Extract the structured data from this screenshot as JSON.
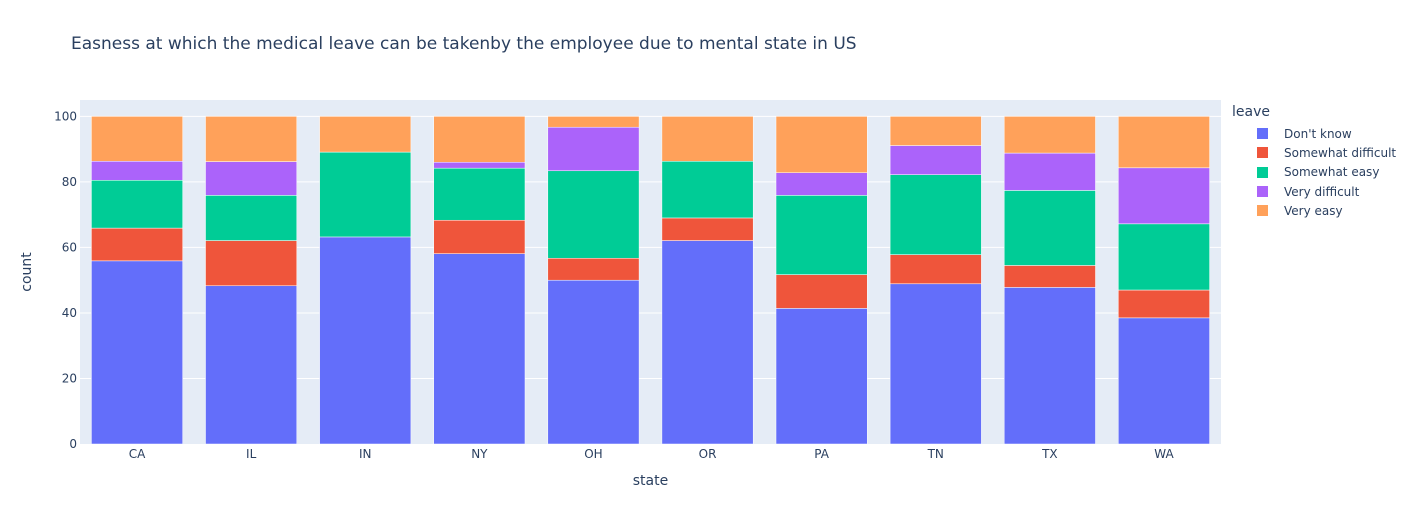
{
  "chart_data": {
    "type": "bar",
    "barmode": "stack",
    "title": "Easness at which the medical leave can be takenby the employee due to mental state in US",
    "xlabel": "state",
    "ylabel": "count",
    "ylim": [
      0,
      100
    ],
    "yticks": [
      0,
      20,
      40,
      60,
      80,
      100
    ],
    "grid": true,
    "legend_title": "leave",
    "legend_position": "right",
    "categories": [
      "CA",
      "IL",
      "IN",
      "NY",
      "OH",
      "OR",
      "PA",
      "TN",
      "TX",
      "WA"
    ],
    "series": [
      {
        "name": "Don't know",
        "color": "#636efa",
        "values": [
          55.9,
          48.3,
          63.2,
          58.1,
          50.0,
          62.1,
          41.4,
          48.9,
          47.8,
          38.5
        ]
      },
      {
        "name": "Somewhat difficult",
        "color": "#ef553b",
        "values": [
          10.0,
          13.8,
          0.0,
          10.2,
          6.7,
          6.9,
          10.3,
          8.9,
          6.7,
          8.5
        ]
      },
      {
        "name": "Somewhat easy",
        "color": "#00cc96",
        "values": [
          14.6,
          13.8,
          25.9,
          15.9,
          26.7,
          17.3,
          24.2,
          24.4,
          22.9,
          20.2
        ]
      },
      {
        "name": "Very difficult",
        "color": "#ab63fa",
        "values": [
          5.8,
          10.3,
          0.0,
          1.8,
          13.3,
          0.0,
          6.9,
          8.9,
          11.4,
          17.1
        ]
      },
      {
        "name": "Very easy",
        "color": "#ffa15a",
        "values": [
          13.7,
          13.8,
          10.9,
          14.0,
          3.3,
          13.7,
          17.2,
          8.9,
          11.2,
          15.7
        ]
      }
    ]
  }
}
